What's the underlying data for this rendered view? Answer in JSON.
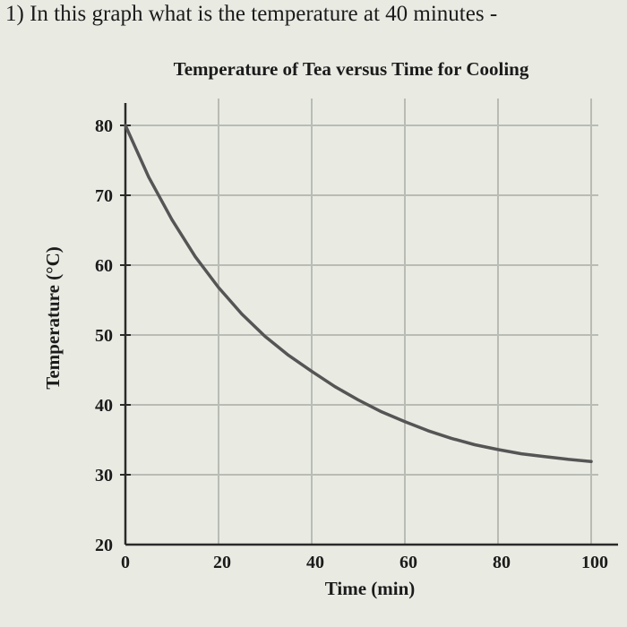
{
  "question": "1) In this graph what is the temperature at 40 minutes -",
  "chart_data": {
    "type": "line",
    "title": "Temperature of Tea versus Time for Cooling",
    "xlabel": "Time (min)",
    "ylabel": "Temperature (°C)",
    "xlim": [
      0,
      100
    ],
    "ylim": [
      20,
      80
    ],
    "x_ticks": [
      0,
      20,
      40,
      60,
      80,
      100
    ],
    "y_ticks": [
      20,
      30,
      40,
      50,
      60,
      70,
      80
    ],
    "grid": true,
    "series": [
      {
        "x": [
          0,
          5,
          10,
          15,
          20,
          25,
          30,
          35,
          40,
          45,
          50,
          55,
          60,
          65,
          70,
          75,
          80,
          85,
          90,
          95,
          100
        ],
        "y": [
          80,
          72.6,
          66.5,
          61.2,
          56.8,
          53.0,
          49.8,
          47.1,
          44.8,
          42.6,
          40.7,
          39.0,
          37.6,
          36.3,
          35.2,
          34.3,
          33.6,
          33.0,
          32.6,
          32.2,
          31.9
        ]
      }
    ],
    "colors": {
      "line": "#555555",
      "grid": "#b9bcb4",
      "axis": "#2a2a2a"
    }
  }
}
